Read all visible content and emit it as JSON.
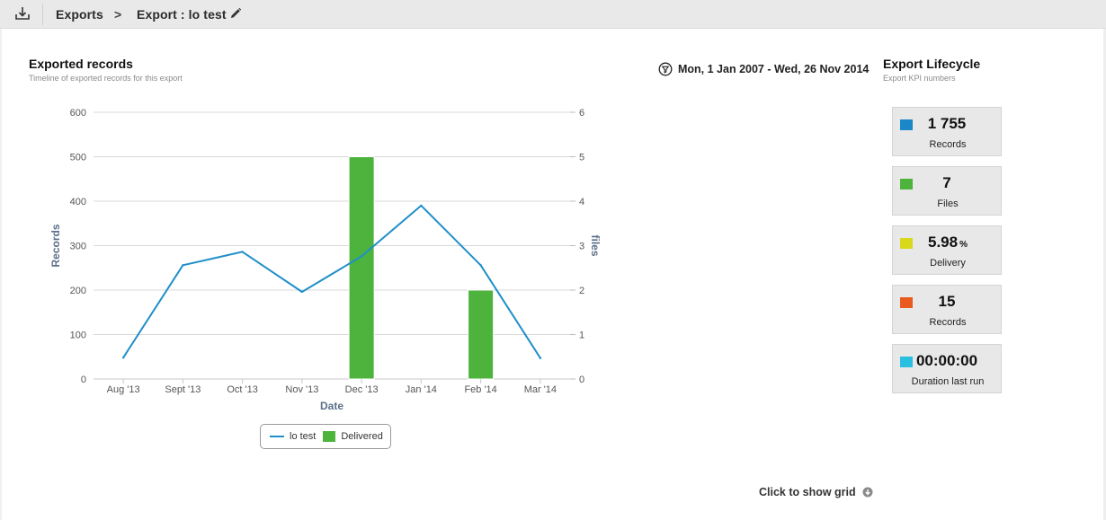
{
  "topbar": {
    "icon": "export-download-icon",
    "breadcrumb_root": "Exports",
    "breadcrumb_arrow": ">",
    "breadcrumb_current": "Export : lo test",
    "edit_icon": "pencil-icon"
  },
  "records_panel": {
    "title": "Exported records",
    "subtitle": "Timeline of exported records for this export"
  },
  "date_range": {
    "icon": "filter-icon",
    "text": "Mon, 1 Jan 2007 - Wed, 26 Nov 2014"
  },
  "lifecycle_panel": {
    "title": "Export Lifecycle",
    "subtitle": "Export KPI numbers"
  },
  "kpis": [
    {
      "value": "1 755",
      "unit": "",
      "label": "Records",
      "color": "#1a87c6"
    },
    {
      "value": "7",
      "unit": "",
      "label": "Files",
      "color": "#4db33d"
    },
    {
      "value": "5.98",
      "unit": "%",
      "label": "Delivery",
      "color": "#d8d91a"
    },
    {
      "value": "15",
      "unit": "",
      "label": "Records",
      "color": "#e85a1e"
    },
    {
      "value": "00:00:00",
      "unit": "",
      "label": "Duration last run",
      "color": "#29bfe0"
    }
  ],
  "show_grid": {
    "label": "Click to show grid",
    "icon": "circle-down-arrow-icon"
  },
  "chart_data": {
    "type": "bar+line",
    "categories": [
      "Aug '13",
      "Sept '13",
      "Oct '13",
      "Nov '13",
      "Dec '13",
      "Jan '14",
      "Feb '14",
      "Mar '14"
    ],
    "xlabel": "Date",
    "ylabel": "Records",
    "y2label": "files",
    "ylim": [
      0,
      600
    ],
    "yticks": [
      0,
      100,
      200,
      300,
      400,
      500,
      600
    ],
    "y2lim": [
      0,
      6
    ],
    "y2ticks": [
      0,
      1,
      2,
      3,
      4,
      5,
      6
    ],
    "series": [
      {
        "name": "lo test",
        "type": "line",
        "axis": "left",
        "color": "#1f8fc9",
        "values": [
          48,
          256,
          286,
          196,
          276,
          390,
          256,
          47
        ]
      },
      {
        "name": "Delivered",
        "type": "bar",
        "axis": "right",
        "color": "#4db33d",
        "values": [
          0,
          0,
          0,
          0,
          5,
          0,
          2,
          0
        ]
      }
    ],
    "grid": true,
    "legend_position": "bottom-center"
  }
}
